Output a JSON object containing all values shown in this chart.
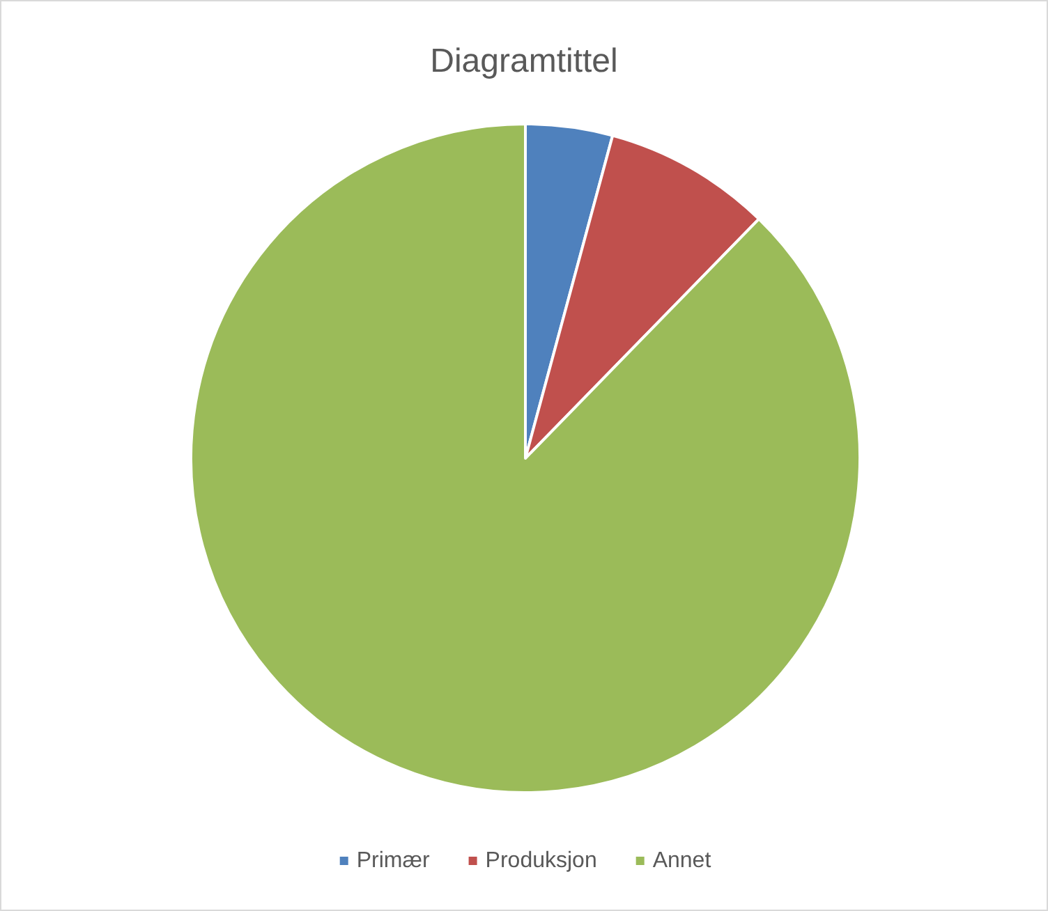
{
  "chart_data": {
    "type": "pie",
    "title": "Diagramtittel",
    "categories": [
      "Primær",
      "Produksjon",
      "Annet"
    ],
    "values": [
      4.2,
      8.1,
      87.7
    ],
    "colors": [
      "#4f81bd",
      "#c0504d",
      "#9bbb59"
    ],
    "legend": "bottom"
  }
}
